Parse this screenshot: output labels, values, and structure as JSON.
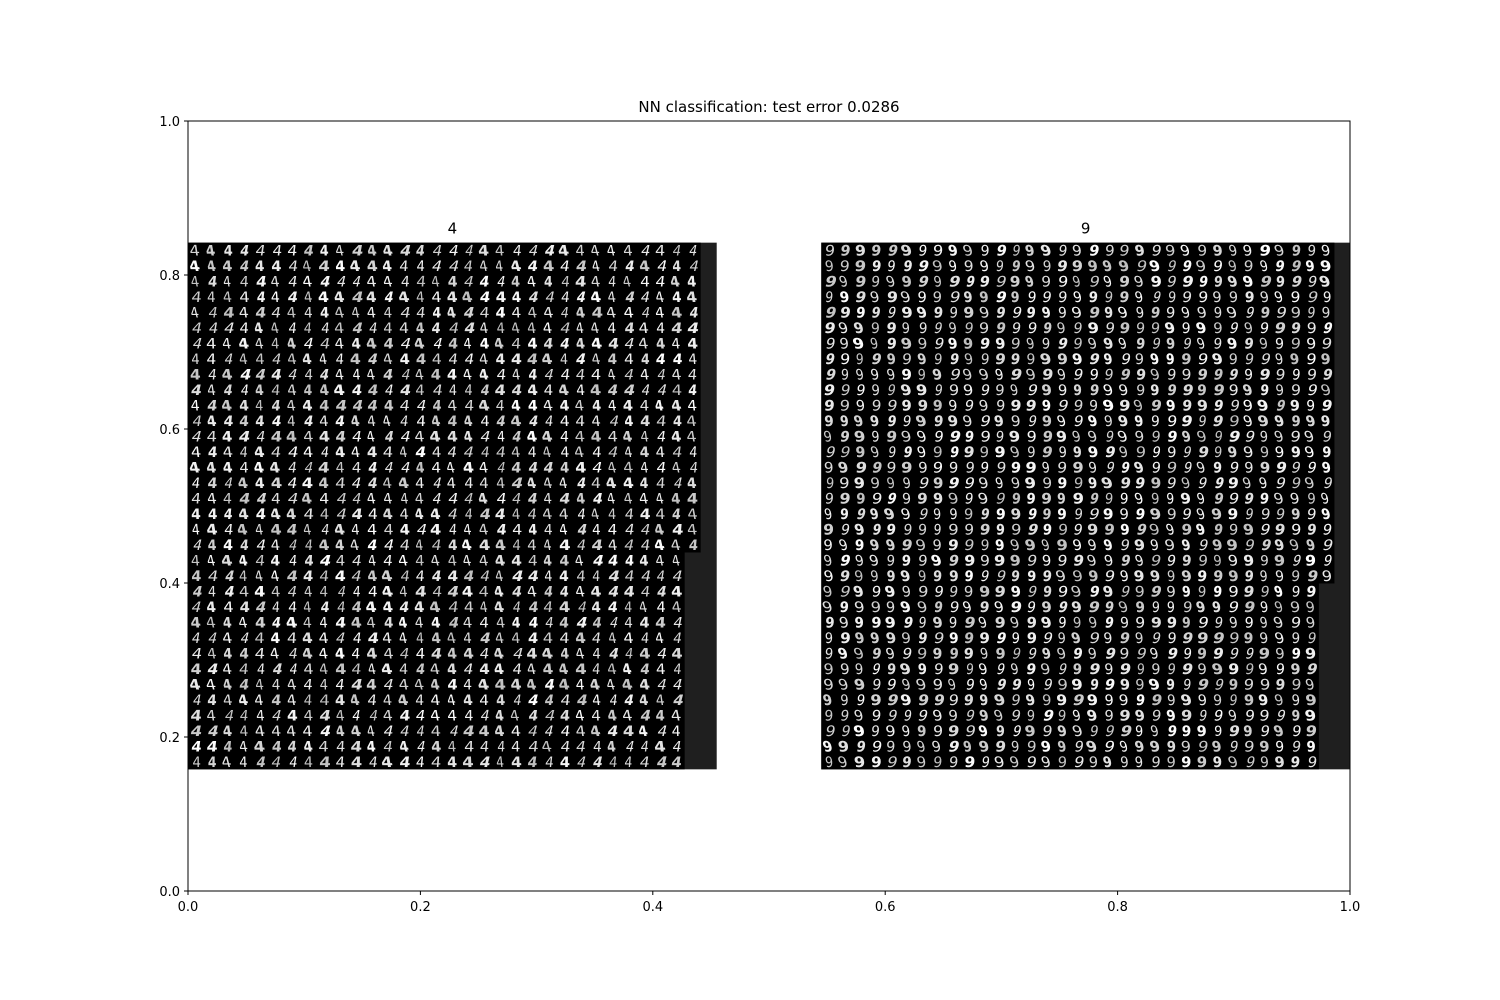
{
  "chart_data": {
    "type": "image-grid",
    "title": "NN classification: test error 0.0286",
    "xlim": [
      0.0,
      1.0
    ],
    "ylim": [
      0.0,
      1.0
    ],
    "x_ticks": [
      "0.0",
      "0.2",
      "0.4",
      "0.6",
      "0.8",
      "1.0"
    ],
    "y_ticks": [
      "0.0",
      "0.2",
      "0.4",
      "0.6",
      "0.8",
      "1.0"
    ],
    "grid": false,
    "panels": [
      {
        "title": "4",
        "digit": 4,
        "x_range": [
          0.0,
          0.455
        ],
        "y_range": [
          0.158,
          0.842
        ],
        "columns": 32,
        "rows": 34,
        "background": "#000000",
        "padding_color": "#1f1f1f",
        "row_fill": [
          {
            "rows": [
              0,
              19
            ],
            "columns": 32
          },
          {
            "rows": [
              20,
              33
            ],
            "columns": 31
          }
        ]
      },
      {
        "title": "9",
        "digit": 9,
        "x_range": [
          0.545,
          1.0
        ],
        "y_range": [
          0.158,
          0.842
        ],
        "columns": 33,
        "rows": 34,
        "background": "#000000",
        "padding_color": "#1f1f1f",
        "row_fill": [
          {
            "rows": [
              0,
              21
            ],
            "columns": 33
          },
          {
            "rows": [
              22,
              33
            ],
            "columns": 32
          }
        ]
      }
    ]
  }
}
